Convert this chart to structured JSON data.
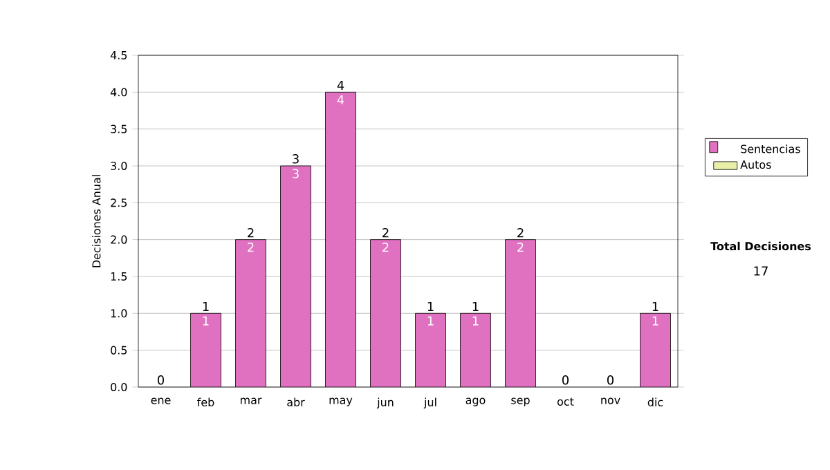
{
  "chart_data": {
    "type": "bar",
    "ylabel": "Decisiones Anual",
    "categories": [
      "ene",
      "feb",
      "mar",
      "abr",
      "may",
      "jun",
      "jul",
      "ago",
      "sep",
      "oct",
      "nov",
      "dic"
    ],
    "series": [
      {
        "name": "Sentencias",
        "color": "#e070c0",
        "values": [
          0,
          1,
          2,
          3,
          4,
          2,
          1,
          1,
          2,
          0,
          0,
          1
        ],
        "value_labels": [
          null,
          "1",
          "2",
          "3",
          "4",
          "2",
          "1",
          "1",
          "2",
          null,
          null,
          "1"
        ]
      },
      {
        "name": "Autos",
        "color": "#e8f0a8",
        "values": [
          null,
          null,
          null,
          null,
          null,
          null,
          null,
          null,
          null,
          null,
          null,
          null
        ]
      }
    ],
    "stacked": true,
    "totals": [
      "0",
      "1",
      "2",
      "3",
      "4",
      "2",
      "1",
      "1",
      "2",
      "0",
      "0",
      "1"
    ],
    "ylim": [
      0,
      4.5
    ],
    "yticks": [
      {
        "value": 0,
        "label": "0.0"
      },
      {
        "value": 0.5,
        "label": "0.5"
      },
      {
        "value": 1,
        "label": "1.0"
      },
      {
        "value": 1.5,
        "label": "1.5"
      },
      {
        "value": 2,
        "label": "2.0"
      },
      {
        "value": 2.5,
        "label": "2.5"
      },
      {
        "value": 3,
        "label": "3.0"
      },
      {
        "value": 3.5,
        "label": "3.5"
      },
      {
        "value": 4,
        "label": "4.0"
      },
      {
        "value": 4.5,
        "label": "4.5"
      }
    ],
    "grid": "y",
    "legend": "right",
    "annotations": [
      "Total Decisiones",
      "17"
    ]
  }
}
